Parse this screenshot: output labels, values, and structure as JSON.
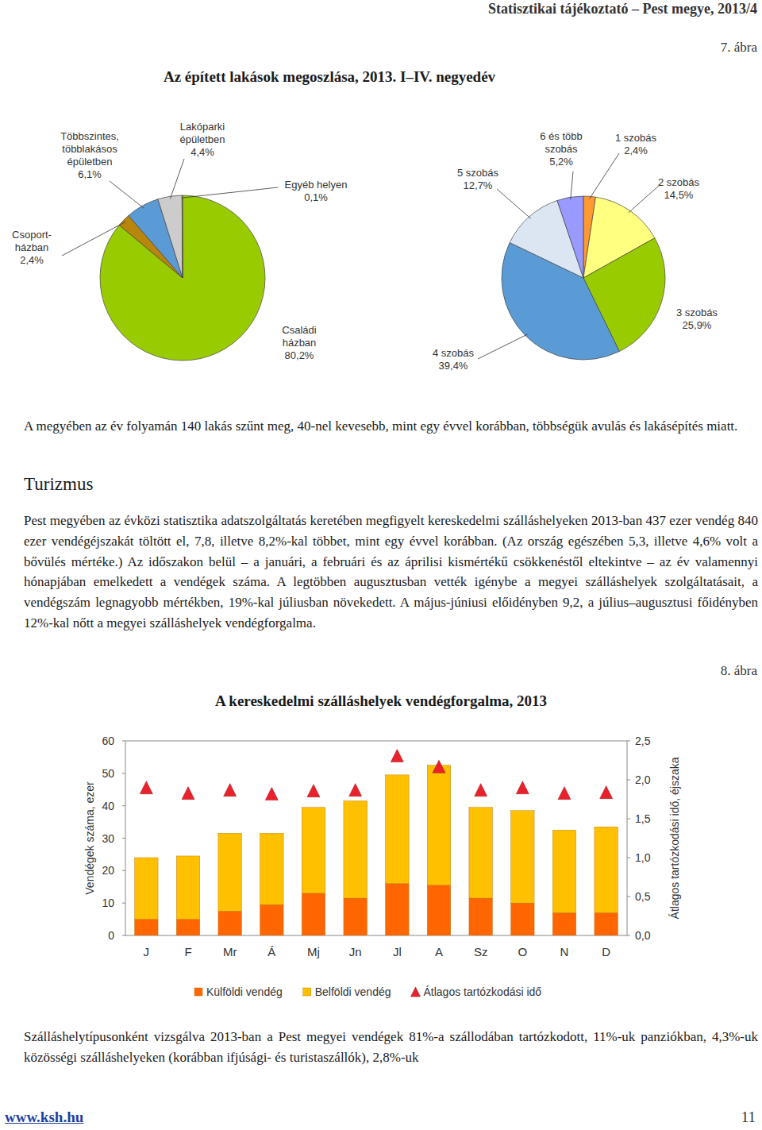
{
  "document": {
    "running_title": "Statisztikai tájékoztató – Pest megye, 2013/4",
    "figure7_number": "7. ábra",
    "figure7_title": "Az épített lakások megoszlása, 2013. I–IV. negyedév",
    "paragraphs": [
      "A megyében az év folyamán 140 lakás szűnt meg, 40-nel kevesebb, mint egy évvel korábban, többségük avulás és lakásépítés miatt.",
      "Pest megyében az évközi statisztika adatszolgáltatás keretében megfigyelt kereskedelmi szálláshelyeken 2013-ban 437 ezer vendég 840 ezer vendégéjszakát töltött el, 7,8, illetve 8,2%-kal többet, mint egy évvel korábban. (Az ország egészében 5,3, illetve 4,6% volt a bővülés mértéke.) Az időszakon belül – a januári, a februári és az áprilisi kismértékű csökkenéstől eltekintve – az év valamennyi hónapjában emelkedett a vendégek száma. A legtöbben augusztusban vették igénybe a megyei szálláshelyek szolgáltatásait, a vendégszám legnagyobb mértékben, 19%-kal júliusban növekedett. A május-júniusi előidényben 9,2, a július–augusztusi főidényben 12%-kal nőtt a megyei szálláshelyek vendégforgalma.",
      "Szálláshelytípusonként vizsgálva 2013-ban a Pest megyei vendégek 81%-a szállodában tartózkodott, 11%-uk panziókban, 4,3%-uk közösségi szálláshelyeken (korábban ifjúsági- és turistaszállók), 2,8%-uk"
    ],
    "section_title": "Turizmus",
    "figure8_number": "8. ábra",
    "footer_url": "www.ksh.hu",
    "page_number": "11"
  },
  "chart_data": [
    {
      "type": "pie",
      "categories": [
        "Családi házban",
        "Csoport-házban",
        "Többszintes, többlakásos épületben",
        "Lakóparki épületben",
        "Egyéb helyen"
      ],
      "values": [
        80.2,
        2.4,
        6.1,
        4.4,
        0.1
      ],
      "value_labels": [
        "80,2%",
        "2,4%",
        "6,1%",
        "4,4%",
        "0,1%"
      ],
      "colors": [
        "#99cc00",
        "#b8860b",
        "#5b9bd5",
        "#cccccc",
        "#ffff99"
      ],
      "data_labels": true
    },
    {
      "type": "pie",
      "categories": [
        "1 szobás",
        "2 szobás",
        "3 szobás",
        "4 szobás",
        "5 szobás",
        "6 és több szobás"
      ],
      "values": [
        2.4,
        14.5,
        25.9,
        39.4,
        12.7,
        5.2
      ],
      "value_labels": [
        "2,4%",
        "14,5%",
        "25,9%",
        "39,4%",
        "12,7%",
        "5,2%"
      ],
      "colors": [
        "#ff9933",
        "#ffff80",
        "#99cc00",
        "#5b9bd5",
        "#dce6f2",
        "#9999ff"
      ],
      "data_labels": true
    },
    {
      "type": "bar",
      "title": "A kereskedelmi szálláshelyek vendégforgalma, 2013",
      "categories": [
        "J",
        "F",
        "Mr",
        "Á",
        "Mj",
        "Jn",
        "Jl",
        "A",
        "Sz",
        "O",
        "N",
        "D"
      ],
      "series": [
        {
          "name": "Külföldi vendég",
          "type": "bar",
          "color": "#ff6600",
          "values": [
            5,
            5,
            7.5,
            9.5,
            13,
            11.5,
            16,
            15.5,
            11.5,
            10,
            7,
            7
          ]
        },
        {
          "name": "Belföldi vendég",
          "type": "bar",
          "color": "#ffc000",
          "values": [
            19,
            19.5,
            24,
            22,
            26.5,
            30,
            33.5,
            37,
            28,
            28.5,
            25.5,
            26.5
          ]
        },
        {
          "name": "Átlagos tartózkodási idő",
          "type": "scatter",
          "marker": "triangle",
          "color": "#e8212d",
          "axis": "y2",
          "values": [
            1.89,
            1.82,
            1.86,
            1.81,
            1.85,
            1.86,
            2.3,
            2.16,
            1.86,
            1.89,
            1.82,
            1.83
          ]
        }
      ],
      "stacked": true,
      "ylabel": "Vendégek száma, ezer",
      "ylim": [
        0,
        60
      ],
      "yticks": [
        0,
        10,
        20,
        30,
        40,
        50,
        60
      ],
      "y2label": "Átlagos tartózkodási idő, éjszaka",
      "y2lim": [
        0,
        2.5
      ],
      "y2ticks": [
        {
          "value": 0,
          "label": "0,0"
        },
        {
          "value": 0.5,
          "label": "0,5"
        },
        {
          "value": 1,
          "label": "1,0"
        },
        {
          "value": 1.5,
          "label": "1,5"
        },
        {
          "value": 2,
          "label": "2,0"
        },
        {
          "value": 2.5,
          "label": "2,5"
        }
      ],
      "legend": "bottom",
      "grid": false
    }
  ]
}
